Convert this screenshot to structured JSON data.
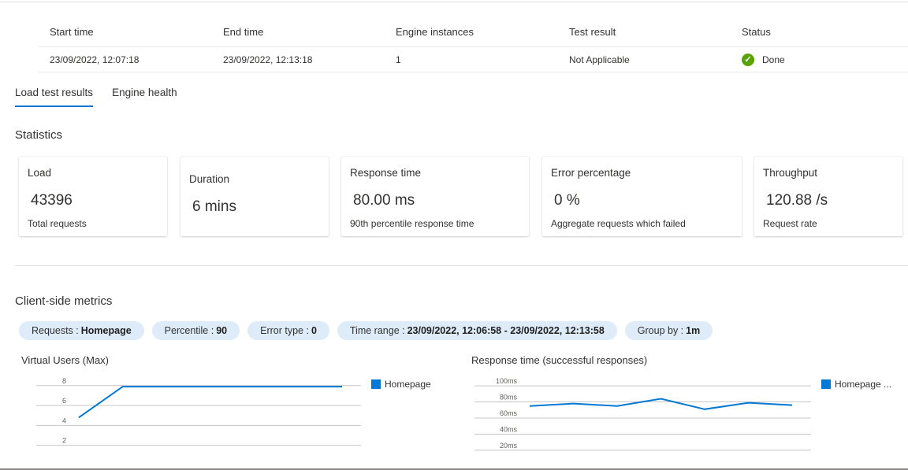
{
  "summary": {
    "headers": [
      "Start time",
      "End time",
      "Engine instances",
      "Test result",
      "Status"
    ],
    "values": [
      "23/09/2022, 12:07:18",
      "23/09/2022, 12:13:18",
      "1",
      "Not Applicable",
      "Done"
    ],
    "status_color": "#57a300"
  },
  "tabs": [
    {
      "label": "Load test results",
      "active": true
    },
    {
      "label": "Engine health",
      "active": false
    }
  ],
  "statistics": {
    "heading": "Statistics",
    "cards": [
      {
        "title": "Load",
        "value": "43396",
        "sub": "Total requests"
      },
      {
        "title": "Duration",
        "value": "6 mins",
        "sub": ""
      },
      {
        "title": "Response time",
        "value": "80.00 ms",
        "sub": "90th percentile response time"
      },
      {
        "title": "Error percentage",
        "value": "0 %",
        "sub": "Aggregate requests which failed"
      },
      {
        "title": "Throughput",
        "value": "120.88 /s",
        "sub": "Request rate"
      }
    ]
  },
  "client": {
    "heading": "Client-side metrics",
    "filters": [
      {
        "label": "Requests :",
        "value": "Homepage"
      },
      {
        "label": "Percentile :",
        "value": "90"
      },
      {
        "label": "Error type :",
        "value": "0"
      },
      {
        "label": "Time range :",
        "value": "23/09/2022, 12:06:58 - 23/09/2022, 12:13:58"
      },
      {
        "label": "Group by :",
        "value": "1m"
      }
    ]
  },
  "chart_data": [
    {
      "type": "line",
      "title": "Virtual Users (Max)",
      "ticks": [
        "8",
        "6",
        "4",
        "2"
      ],
      "ylim": [
        1.5,
        8.3
      ],
      "series": [
        {
          "name": "Homepage",
          "values": [
            4.8,
            7.9,
            7.9,
            7.9,
            7.9,
            7.9,
            7.9
          ]
        }
      ],
      "color": "#0078d4"
    },
    {
      "type": "line",
      "title": "Response time (successful responses)",
      "ticks": [
        "100ms",
        "80ms",
        "60ms",
        "40ms",
        "20ms"
      ],
      "ylim": [
        15,
        105
      ],
      "series": [
        {
          "name": "Homepage ...",
          "values": [
            75,
            78,
            75,
            84,
            71,
            79,
            76
          ]
        }
      ],
      "color": "#0078d4"
    }
  ],
  "accent": "#0078d4",
  "pill_bg": "#deecf9"
}
